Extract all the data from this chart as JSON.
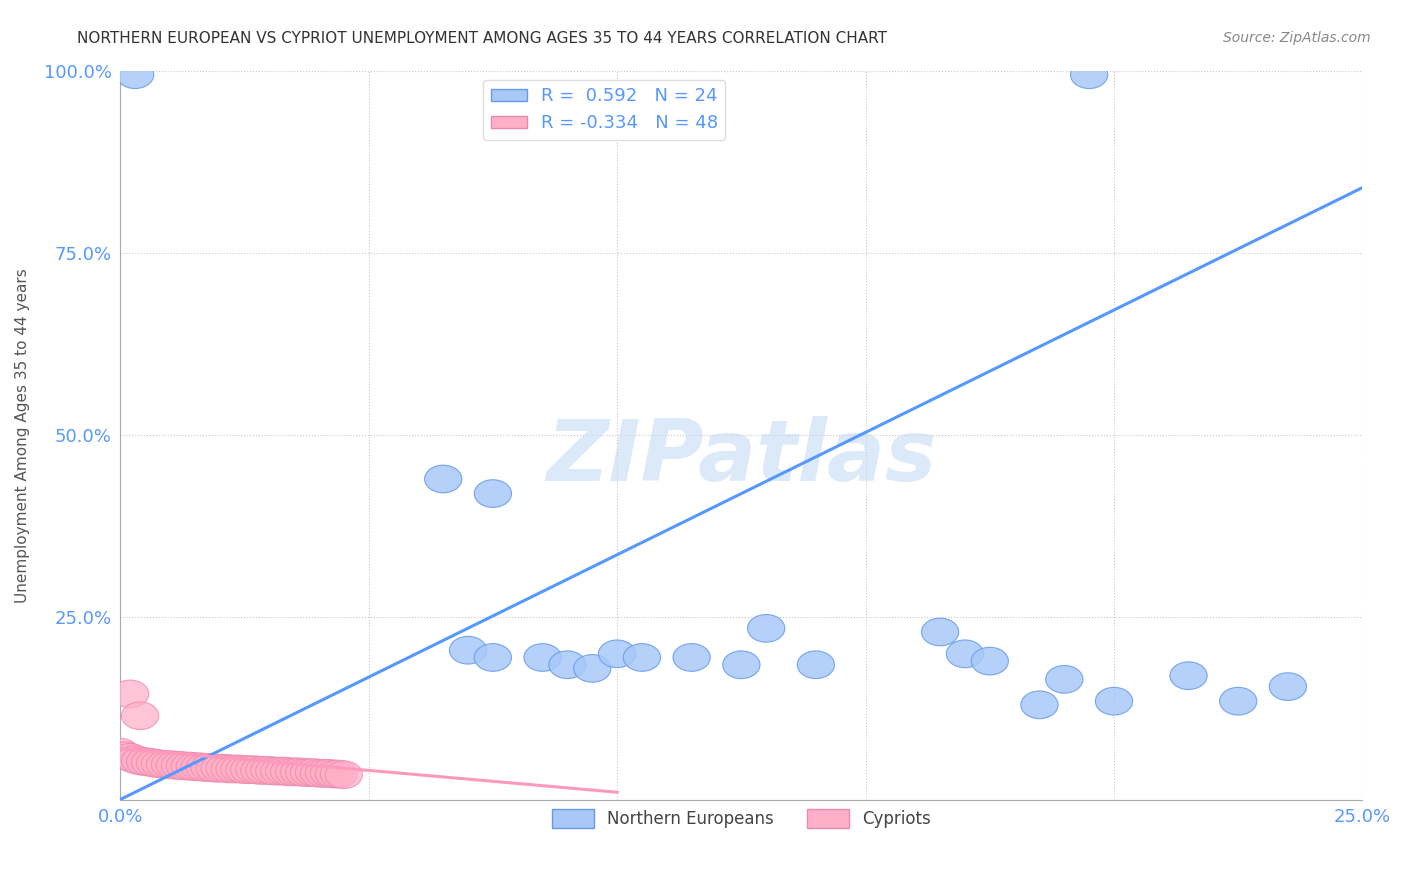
{
  "title": "NORTHERN EUROPEAN VS CYPRIOT UNEMPLOYMENT AMONG AGES 35 TO 44 YEARS CORRELATION CHART",
  "source": "Source: ZipAtlas.com",
  "ylabel": "Unemployment Among Ages 35 to 44 years",
  "xlim": [
    0.0,
    0.25
  ],
  "ylim": [
    0.0,
    1.0
  ],
  "blue_R": 0.592,
  "blue_N": 24,
  "pink_R": -0.334,
  "pink_N": 48,
  "blue_color": "#a8c8f8",
  "pink_color": "#ffb0c8",
  "blue_edge_color": "#6699ee",
  "pink_edge_color": "#ee88aa",
  "blue_line_color": "#5599ff",
  "pink_line_color": "#ff99bb",
  "legend_label_blue": "Northern Europeans",
  "legend_label_pink": "Cypriots",
  "watermark": "ZIPatlas",
  "background_color": "#ffffff",
  "grid_color": "#bbbbbb",
  "title_color": "#333333",
  "blue_line_x0": 0.0,
  "blue_line_y0": 0.0,
  "blue_line_x1": 0.25,
  "blue_line_y1": 0.84,
  "pink_line_x0": 0.0,
  "pink_line_y0": 0.07,
  "pink_line_x1": 0.1,
  "pink_line_y1": 0.01,
  "blue_scatter": [
    [
      0.003,
      0.995
    ],
    [
      0.195,
      0.995
    ],
    [
      0.065,
      0.44
    ],
    [
      0.075,
      0.42
    ],
    [
      0.07,
      0.205
    ],
    [
      0.075,
      0.195
    ],
    [
      0.085,
      0.195
    ],
    [
      0.09,
      0.185
    ],
    [
      0.095,
      0.18
    ],
    [
      0.1,
      0.2
    ],
    [
      0.105,
      0.195
    ],
    [
      0.115,
      0.195
    ],
    [
      0.125,
      0.185
    ],
    [
      0.13,
      0.235
    ],
    [
      0.14,
      0.185
    ],
    [
      0.165,
      0.23
    ],
    [
      0.17,
      0.2
    ],
    [
      0.175,
      0.19
    ],
    [
      0.185,
      0.13
    ],
    [
      0.19,
      0.165
    ],
    [
      0.2,
      0.135
    ],
    [
      0.215,
      0.17
    ],
    [
      0.225,
      0.135
    ],
    [
      0.235,
      0.155
    ]
  ],
  "pink_scatter": [
    [
      0.002,
      0.145
    ],
    [
      0.004,
      0.115
    ],
    [
      0.0,
      0.065
    ],
    [
      0.001,
      0.06
    ],
    [
      0.002,
      0.058
    ],
    [
      0.003,
      0.055
    ],
    [
      0.004,
      0.053
    ],
    [
      0.005,
      0.052
    ],
    [
      0.006,
      0.051
    ],
    [
      0.007,
      0.05
    ],
    [
      0.008,
      0.049
    ],
    [
      0.009,
      0.048
    ],
    [
      0.01,
      0.048
    ],
    [
      0.011,
      0.047
    ],
    [
      0.012,
      0.047
    ],
    [
      0.013,
      0.046
    ],
    [
      0.014,
      0.046
    ],
    [
      0.015,
      0.045
    ],
    [
      0.016,
      0.045
    ],
    [
      0.017,
      0.044
    ],
    [
      0.018,
      0.044
    ],
    [
      0.019,
      0.043
    ],
    [
      0.02,
      0.043
    ],
    [
      0.021,
      0.043
    ],
    [
      0.022,
      0.042
    ],
    [
      0.023,
      0.042
    ],
    [
      0.024,
      0.042
    ],
    [
      0.025,
      0.041
    ],
    [
      0.026,
      0.041
    ],
    [
      0.027,
      0.041
    ],
    [
      0.028,
      0.04
    ],
    [
      0.029,
      0.04
    ],
    [
      0.03,
      0.04
    ],
    [
      0.031,
      0.039
    ],
    [
      0.032,
      0.039
    ],
    [
      0.033,
      0.039
    ],
    [
      0.034,
      0.038
    ],
    [
      0.035,
      0.038
    ],
    [
      0.036,
      0.038
    ],
    [
      0.037,
      0.037
    ],
    [
      0.038,
      0.037
    ],
    [
      0.039,
      0.037
    ],
    [
      0.04,
      0.036
    ],
    [
      0.041,
      0.036
    ],
    [
      0.042,
      0.036
    ],
    [
      0.043,
      0.035
    ],
    [
      0.044,
      0.035
    ],
    [
      0.045,
      0.034
    ]
  ]
}
